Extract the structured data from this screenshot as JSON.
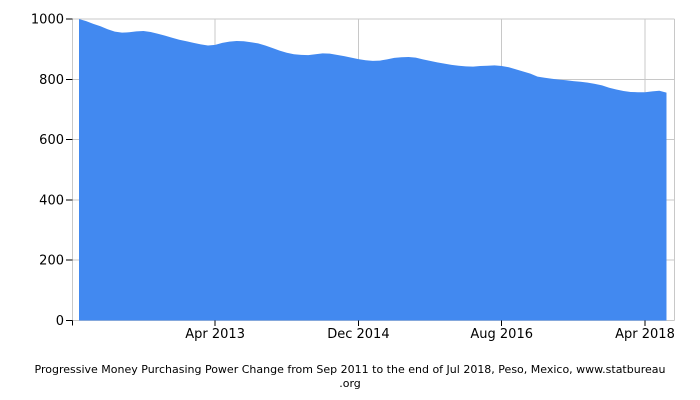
{
  "caption": {
    "line1": "Progressive Money Purchasing Power Change from Sep 2011 to the end of Jul 2018, Peso, Mexico, www.statbureau",
    "line2": ".org"
  },
  "colors": {
    "area_fill": "#4289f0",
    "grid_line": "#c8c8c8",
    "tick_mark": "#000000",
    "tick_text": "#000000",
    "background": "#ffffff"
  },
  "chart_data": {
    "type": "area",
    "title": "Progressive Money Purchasing Power Change from Sep 2011 to the end of Jul 2018, Peso, Mexico, www.statbureau.org",
    "xlabel": "",
    "ylabel": "",
    "ylim": [
      0,
      1000
    ],
    "y_ticks": [
      0,
      200,
      400,
      600,
      800,
      1000
    ],
    "y_tick_labels": [
      "0",
      "200",
      "400",
      "600",
      "800",
      "1000"
    ],
    "x_tick_labels": [
      "Apr 2013",
      "Dec 2014",
      "Aug 2016",
      "Apr 2018"
    ],
    "x_tick_indices": [
      19,
      39,
      59,
      79
    ],
    "grid": true,
    "legend": false,
    "categories": [
      "Sep 2011",
      "Oct 2011",
      "Nov 2011",
      "Dec 2011",
      "Jan 2012",
      "Feb 2012",
      "Mar 2012",
      "Apr 2012",
      "May 2012",
      "Jun 2012",
      "Jul 2012",
      "Aug 2012",
      "Sep 2012",
      "Oct 2012",
      "Nov 2012",
      "Dec 2012",
      "Jan 2013",
      "Feb 2013",
      "Mar 2013",
      "Apr 2013",
      "May 2013",
      "Jun 2013",
      "Jul 2013",
      "Aug 2013",
      "Sep 2013",
      "Oct 2013",
      "Nov 2013",
      "Dec 2013",
      "Jan 2014",
      "Feb 2014",
      "Mar 2014",
      "Apr 2014",
      "May 2014",
      "Jun 2014",
      "Jul 2014",
      "Aug 2014",
      "Sep 2014",
      "Oct 2014",
      "Nov 2014",
      "Dec 2014",
      "Jan 2015",
      "Feb 2015",
      "Mar 2015",
      "Apr 2015",
      "May 2015",
      "Jun 2015",
      "Jul 2015",
      "Aug 2015",
      "Sep 2015",
      "Oct 2015",
      "Nov 2015",
      "Dec 2015",
      "Jan 2016",
      "Feb 2016",
      "Mar 2016",
      "Apr 2016",
      "May 2016",
      "Jun 2016",
      "Jul 2016",
      "Aug 2016",
      "Sep 2016",
      "Oct 2016",
      "Nov 2016",
      "Dec 2016",
      "Jan 2017",
      "Feb 2017",
      "Mar 2017",
      "Apr 2017",
      "May 2017",
      "Jun 2017",
      "Jul 2017",
      "Aug 2017",
      "Sep 2017",
      "Oct 2017",
      "Nov 2017",
      "Dec 2017",
      "Jan 2018",
      "Feb 2018",
      "Mar 2018",
      "Apr 2018",
      "May 2018",
      "Jun 2018",
      "Jul 2018"
    ],
    "values": [
      1000,
      993,
      984,
      976,
      966,
      958,
      955,
      956,
      959,
      960,
      957,
      951,
      945,
      938,
      931,
      926,
      921,
      916,
      912,
      914,
      921,
      925,
      927,
      926,
      923,
      919,
      912,
      904,
      895,
      888,
      883,
      881,
      880,
      883,
      886,
      885,
      881,
      877,
      872,
      867,
      863,
      861,
      862,
      866,
      871,
      873,
      874,
      872,
      866,
      861,
      856,
      852,
      848,
      845,
      843,
      842,
      844,
      845,
      846,
      844,
      840,
      833,
      826,
      819,
      809,
      805,
      802,
      799,
      797,
      794,
      792,
      789,
      785,
      780,
      772,
      766,
      761,
      758,
      757,
      757,
      760,
      762,
      756
    ]
  }
}
